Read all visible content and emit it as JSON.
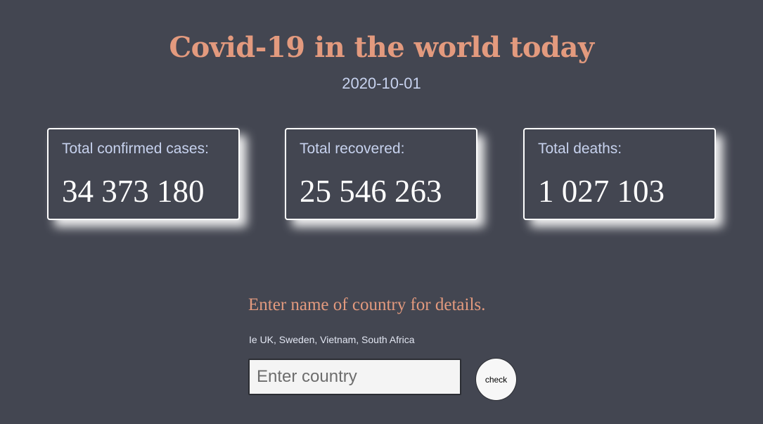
{
  "header": {
    "title": "Covid-19 in the world today",
    "date": "2020-10-01"
  },
  "stats": [
    {
      "label": "Total confirmed cases:",
      "value": "34 373 180"
    },
    {
      "label": "Total recovered:",
      "value": "25 546 263"
    },
    {
      "label": "Total deaths:",
      "value": "1 027 103"
    }
  ],
  "search": {
    "prompt": "Enter name of country for details.",
    "hint": "Ie UK, Sweden, Vietnam, South Africa",
    "placeholder": "Enter country",
    "value": "",
    "button_label": "check"
  },
  "colors": {
    "background": "#434651",
    "accent": "#e39a7e",
    "label": "#c7d2ee"
  }
}
